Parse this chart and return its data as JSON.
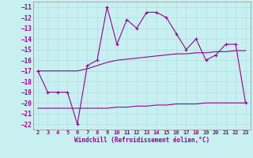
{
  "xlabel": "Windchill (Refroidissement éolien,°C)",
  "bg_color": "#c8f0f0",
  "grid_color": "#b0e0e0",
  "line_color": "#990099",
  "x_hours": [
    2,
    3,
    4,
    5,
    6,
    7,
    8,
    9,
    10,
    11,
    12,
    13,
    14,
    15,
    16,
    17,
    18,
    19,
    20,
    21,
    22,
    23
  ],
  "windchill": [
    -17.0,
    -19.0,
    -19.0,
    -19.0,
    -22.0,
    -16.5,
    -16.0,
    -11.0,
    -14.5,
    -12.2,
    -13.0,
    -11.5,
    -11.5,
    -12.0,
    -13.5,
    -15.0,
    -14.0,
    -16.0,
    -15.5,
    -14.5,
    -14.5,
    -20.0
  ],
  "upper_flat": [
    -17.0,
    -17.0,
    -17.0,
    -17.0,
    -17.0,
    -16.8,
    -16.5,
    -16.2,
    -16.0,
    -15.9,
    -15.8,
    -15.7,
    -15.6,
    -15.5,
    -15.4,
    -15.4,
    -15.3,
    -15.3,
    -15.2,
    -15.2,
    -15.1,
    -15.1
  ],
  "lower_flat": [
    -20.5,
    -20.5,
    -20.5,
    -20.5,
    -20.5,
    -20.5,
    -20.5,
    -20.5,
    -20.4,
    -20.4,
    -20.3,
    -20.3,
    -20.2,
    -20.2,
    -20.1,
    -20.1,
    -20.1,
    -20.0,
    -20.0,
    -20.0,
    -20.0,
    -20.0
  ],
  "ylim": [
    -22.5,
    -10.5
  ],
  "yticks": [
    -11,
    -12,
    -13,
    -14,
    -15,
    -16,
    -17,
    -18,
    -19,
    -20,
    -21,
    -22
  ],
  "xlim": [
    1.5,
    23.5
  ],
  "xticks": [
    2,
    3,
    4,
    5,
    6,
    7,
    8,
    9,
    10,
    11,
    12,
    13,
    14,
    15,
    16,
    17,
    18,
    19,
    20,
    21,
    22,
    23
  ]
}
